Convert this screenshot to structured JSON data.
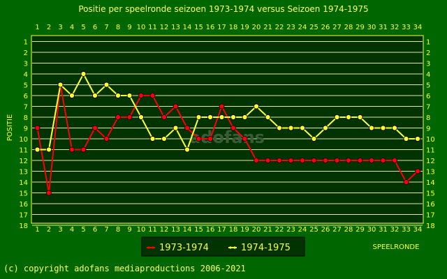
{
  "chart_data": {
    "type": "line",
    "title": "Positie per speelronde seizoen 1973-1974 versus Seizoen 1974-1975",
    "ylabel": "POSITIE",
    "xlabel": "SPEELRONDE",
    "x": [
      1,
      2,
      3,
      4,
      5,
      6,
      7,
      8,
      9,
      10,
      11,
      12,
      13,
      14,
      15,
      16,
      17,
      18,
      19,
      20,
      21,
      22,
      23,
      24,
      25,
      26,
      27,
      28,
      29,
      30,
      31,
      32,
      33,
      34
    ],
    "yticks": [
      1,
      2,
      3,
      4,
      5,
      6,
      7,
      8,
      9,
      10,
      11,
      12,
      13,
      14,
      15,
      16,
      17,
      18
    ],
    "ylim": [
      1,
      18
    ],
    "y_inverted": true,
    "grid": true,
    "legend_position": "bottom-left",
    "series": [
      {
        "name": "1973-1974",
        "color": "#ff0000",
        "values": [
          9,
          15,
          5,
          11,
          11,
          9,
          10,
          8,
          8,
          6,
          6,
          8,
          7,
          9,
          10,
          10,
          7,
          9,
          10,
          12,
          12,
          12,
          12,
          12,
          12,
          12,
          12,
          12,
          12,
          12,
          12,
          12,
          14,
          13
        ]
      },
      {
        "name": "1974-1975",
        "color": "#ffff33",
        "values": [
          11,
          11,
          5,
          6,
          4,
          6,
          5,
          6,
          6,
          8,
          10,
          10,
          9,
          11,
          8,
          8,
          8,
          8,
          8,
          7,
          8,
          9,
          9,
          9,
          10,
          9,
          8,
          8,
          8,
          9,
          9,
          9,
          10,
          10
        ]
      }
    ]
  },
  "watermark": "adofans",
  "copyright": "(c) copyright adofans mediaproductions 2006-2021",
  "colors": {
    "background": "#006600",
    "plot": "#003300",
    "grid": "#e6e6a0",
    "text": "#ffff33"
  }
}
